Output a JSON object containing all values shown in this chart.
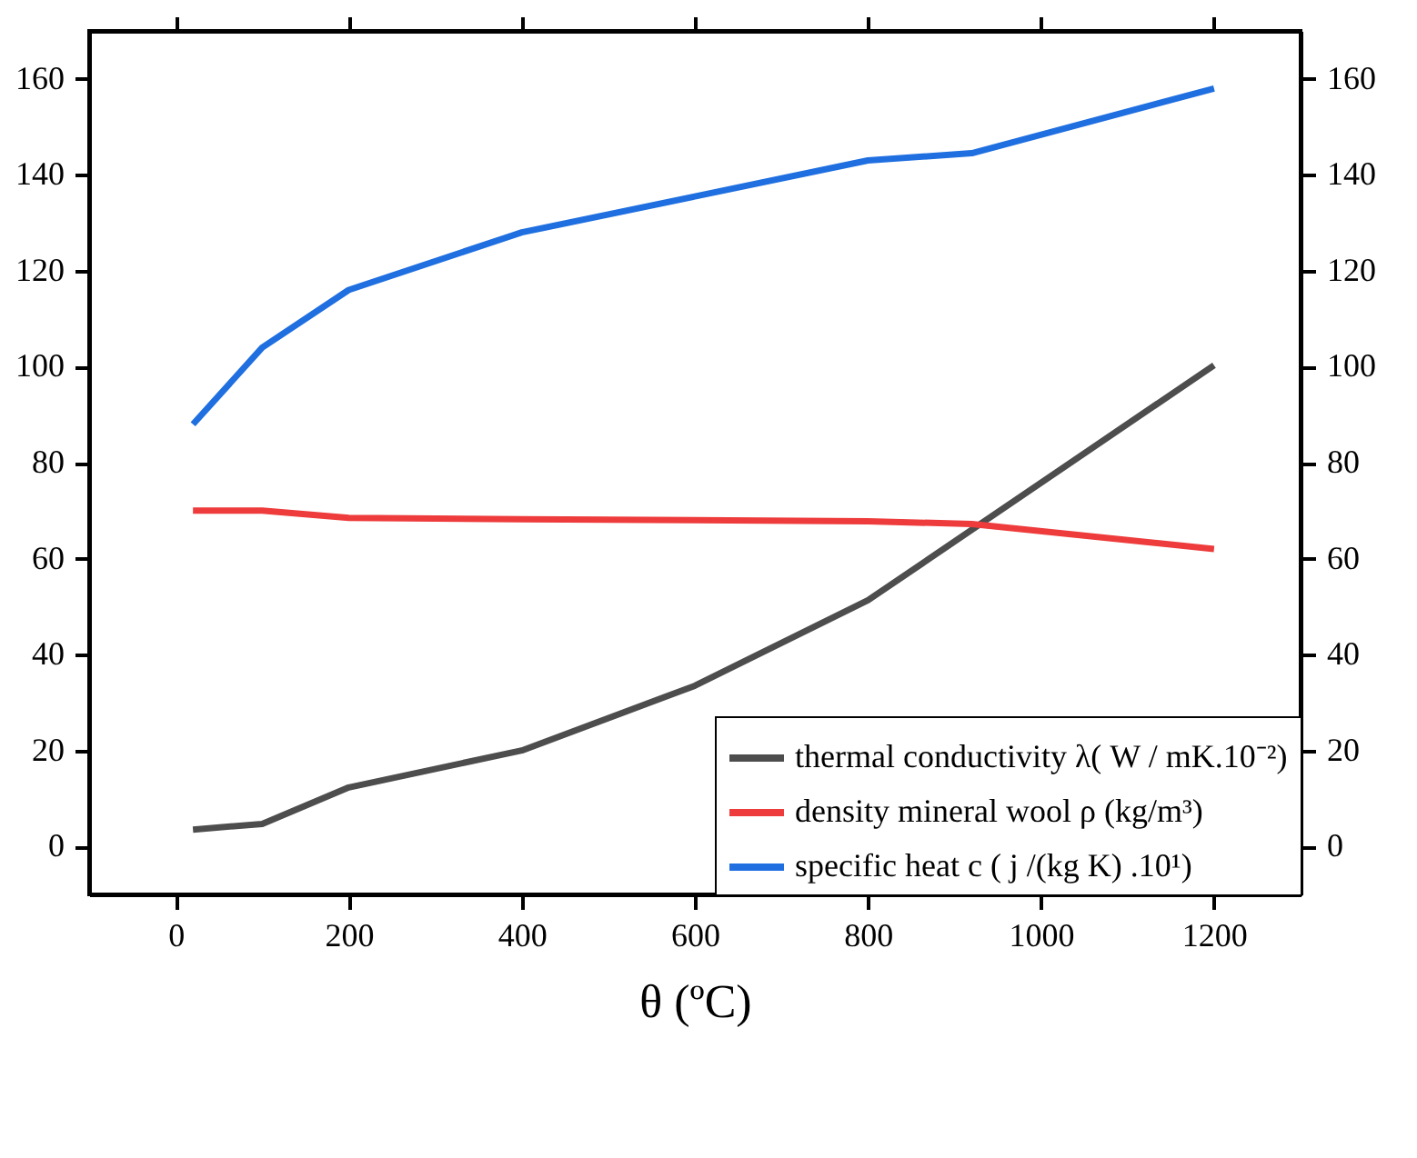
{
  "chart_data": {
    "type": "line",
    "xlabel": "θ (ºC)",
    "xlim": [
      -100,
      1300
    ],
    "xticks": [
      0,
      200,
      400,
      600,
      800,
      1000,
      1200
    ],
    "ylim": [
      -10,
      170
    ],
    "yticks": [
      0,
      20,
      40,
      60,
      80,
      100,
      120,
      140,
      160
    ],
    "y2lim": [
      -10,
      170
    ],
    "y2ticks": [
      0,
      20,
      40,
      60,
      80,
      100,
      120,
      140,
      160
    ],
    "grid": false,
    "legend": "bottom right",
    "marker": "none",
    "line_style": "solid",
    "series": [
      {
        "name": "thermal conductivity λ( W / mK.10⁻²)",
        "color": "#4d4d4d",
        "x": [
          20,
          100,
          200,
          400,
          600,
          800,
          1200
        ],
        "values": [
          3.5,
          4.7,
          12.3,
          20,
          33.5,
          51.3,
          100.3
        ]
      },
      {
        "name": "density mineral wool ρ (kg/m³)",
        "color": "#ee3b3b",
        "x": [
          20,
          100,
          200,
          400,
          600,
          800,
          920,
          1200
        ],
        "values": [
          70,
          70,
          68.5,
          68.2,
          68,
          67.8,
          67.2,
          62
        ]
      },
      {
        "name": "specific heat  c  ( j /(kg K) .10¹)",
        "color": "#1f6fe0",
        "x": [
          20,
          100,
          200,
          400,
          600,
          800,
          920,
          1200
        ],
        "values": [
          88,
          104,
          116,
          128,
          135.5,
          143,
          144.5,
          158
        ]
      }
    ]
  }
}
